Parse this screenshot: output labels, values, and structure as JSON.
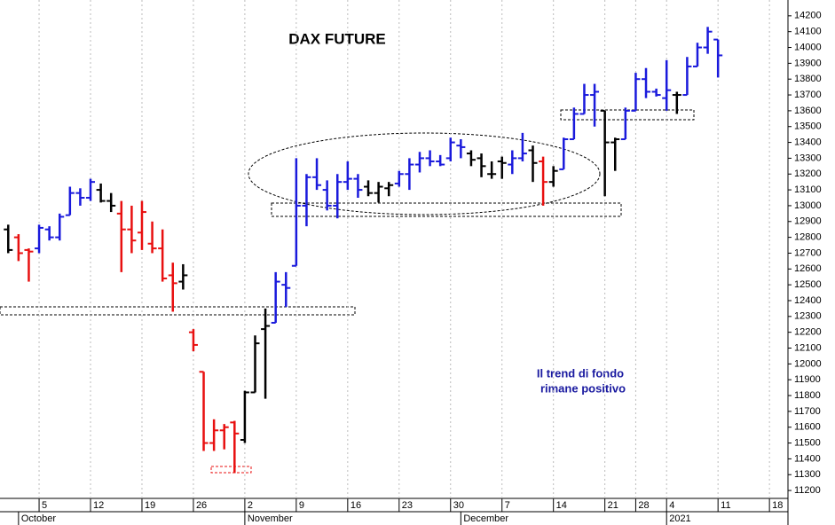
{
  "chart_data": {
    "type": "ohlc",
    "title": "DAX FUTURE",
    "annotations": [
      "Il trend di fondo",
      "rimane positivo"
    ],
    "x": [
      -3,
      -2,
      -1,
      0,
      1,
      2,
      3,
      4,
      5,
      6,
      7,
      8,
      9,
      10,
      11,
      12,
      13,
      14,
      15,
      16,
      17,
      18,
      19,
      20,
      21,
      22,
      23,
      24,
      25,
      26,
      27,
      28,
      29,
      30,
      31,
      32,
      33,
      34,
      35,
      36,
      37,
      38,
      39,
      40,
      41,
      42,
      43,
      44,
      45,
      46,
      47,
      48,
      49,
      50,
      51,
      52,
      53,
      54,
      55,
      56,
      57,
      58,
      59,
      60,
      61,
      62,
      63,
      64,
      65,
      66
    ],
    "open": [
      12850,
      12800,
      12720,
      12730,
      12850,
      12800,
      12940,
      13080,
      13050,
      13100,
      13030,
      12950,
      12850,
      12830,
      12760,
      12730,
      12560,
      12520,
      12200,
      11950,
      11500,
      11580,
      11630,
      11520,
      11820,
      12220,
      12260,
      12500,
      12620,
      13000,
      13180,
      13100,
      13000,
      13150,
      13170,
      13120,
      13080,
      13110,
      13140,
      13200,
      13260,
      13300,
      13280,
      13300,
      13380,
      13330,
      13300,
      13200,
      13280,
      13260,
      13300,
      13350,
      13280,
      13150,
      13230,
      13420,
      13580,
      13700,
      13600,
      13400,
      13420,
      13600,
      13800,
      13720,
      13680,
      13700,
      13700,
      13880,
      14000,
      14050
    ],
    "high": [
      12880,
      12820,
      12730,
      12880,
      12870,
      12950,
      13120,
      13110,
      13170,
      13140,
      13080,
      13030,
      13000,
      13030,
      12900,
      12850,
      12640,
      12630,
      12220,
      11950,
      11650,
      11620,
      11640,
      11830,
      12180,
      12350,
      12580,
      12580,
      13300,
      13200,
      13300,
      13160,
      13200,
      13280,
      13200,
      13160,
      13150,
      13150,
      13220,
      13300,
      13340,
      13350,
      13320,
      13430,
      13420,
      13350,
      13330,
      13280,
      13310,
      13350,
      13460,
      13380,
      13310,
      13250,
      13430,
      13620,
      13770,
      13770,
      13600,
      13430,
      13620,
      13840,
      13870,
      13740,
      13920,
      13720,
      13940,
      14030,
      14130,
      14050
    ],
    "low": [
      12700,
      12650,
      12520,
      12700,
      12780,
      12780,
      12940,
      13000,
      13030,
      13020,
      12960,
      12580,
      12700,
      12720,
      12700,
      12520,
      12330,
      12470,
      12080,
      11450,
      11450,
      11460,
      11310,
      11500,
      11820,
      11780,
      12260,
      12360,
      12620,
      12870,
      13100,
      12970,
      12920,
      13100,
      13050,
      13060,
      13020,
      13060,
      13120,
      13100,
      13210,
      13250,
      13250,
      13280,
      13300,
      13250,
      13180,
      13170,
      13170,
      13200,
      13280,
      13150,
      13000,
      13120,
      13230,
      13420,
      13580,
      13500,
      13060,
      13220,
      13420,
      13600,
      13680,
      13690,
      13600,
      13580,
      13700,
      13880,
      13960,
      13810
    ],
    "close": [
      12720,
      12700,
      12710,
      12860,
      12800,
      12930,
      13080,
      13050,
      13150,
      13030,
      13000,
      12850,
      12780,
      12960,
      12730,
      12540,
      12510,
      12560,
      12120,
      11500,
      11580,
      11600,
      11560,
      11820,
      12130,
      12240,
      12520,
      12480,
      13000,
      13180,
      13130,
      13000,
      13150,
      13170,
      13100,
      13080,
      13120,
      13130,
      13200,
      13260,
      13300,
      13280,
      13260,
      13400,
      13370,
      13290,
      13250,
      13200,
      13270,
      13300,
      13330,
      13270,
      13150,
      13220,
      13420,
      13580,
      13700,
      13720,
      13400,
      13420,
      13600,
      13800,
      13720,
      13700,
      13730,
      13700,
      13880,
      14000,
      14100,
      13950
    ],
    "colors": [
      "#000000",
      "#e81010",
      "#e81010",
      "#1a1adc",
      "#1a1adc",
      "#1a1adc",
      "#1a1adc",
      "#1a1adc",
      "#1a1adc",
      "#000000",
      "#000000",
      "#e81010",
      "#e81010",
      "#e81010",
      "#e81010",
      "#e81010",
      "#e81010",
      "#000000",
      "#e81010",
      "#e81010",
      "#e81010",
      "#e81010",
      "#e81010",
      "#000000",
      "#000000",
      "#000000",
      "#1a1adc",
      "#1a1adc",
      "#1a1adc",
      "#1a1adc",
      "#1a1adc",
      "#1a1adc",
      "#1a1adc",
      "#1a1adc",
      "#1a1adc",
      "#000000",
      "#000000",
      "#000000",
      "#1a1adc",
      "#1a1adc",
      "#1a1adc",
      "#1a1adc",
      "#1a1adc",
      "#1a1adc",
      "#1a1adc",
      "#000000",
      "#000000",
      "#000000",
      "#000000",
      "#1a1adc",
      "#1a1adc",
      "#000000",
      "#e81010",
      "#000000",
      "#1a1adc",
      "#1a1adc",
      "#1a1adc",
      "#1a1adc",
      "#000000",
      "#000000",
      "#1a1adc",
      "#1a1adc",
      "#1a1adc",
      "#1a1adc",
      "#1a1adc",
      "#000000",
      "#1a1adc",
      "#1a1adc",
      "#1a1adc",
      "#1a1adc"
    ],
    "xlim": [
      -3.8,
      72.8
    ],
    "xticks": [
      {
        "value": 0,
        "label": "5"
      },
      {
        "value": 5,
        "label": "12"
      },
      {
        "value": 10,
        "label": "19"
      },
      {
        "value": 15,
        "label": "26"
      },
      {
        "value": 20,
        "label": "2"
      },
      {
        "value": 25,
        "label": "9"
      },
      {
        "value": 30,
        "label": "16"
      },
      {
        "value": 35,
        "label": "23"
      },
      {
        "value": 40,
        "label": "30"
      },
      {
        "value": 45,
        "label": "7"
      },
      {
        "value": 50,
        "label": "14"
      },
      {
        "value": 55,
        "label": "21"
      },
      {
        "value": 58,
        "label": "28"
      },
      {
        "value": 61,
        "label": "4"
      },
      {
        "value": 66,
        "label": "11"
      },
      {
        "value": 71,
        "label": "18"
      }
    ],
    "month_ticks": [
      {
        "value": -2,
        "label": "October"
      },
      {
        "value": 20,
        "label": "November"
      },
      {
        "value": 41,
        "label": "December"
      },
      {
        "value": 61,
        "label": "2021"
      }
    ],
    "ylim": [
      11150,
      14300
    ],
    "yticks": [
      11200,
      11300,
      11400,
      11500,
      11600,
      11700,
      11800,
      11900,
      12000,
      12100,
      12200,
      12300,
      12400,
      12500,
      12600,
      12700,
      12800,
      12900,
      13000,
      13100,
      13200,
      13300,
      13400,
      13500,
      13600,
      13700,
      13800,
      13900,
      14000,
      14100,
      14200
    ],
    "grid": true
  }
}
